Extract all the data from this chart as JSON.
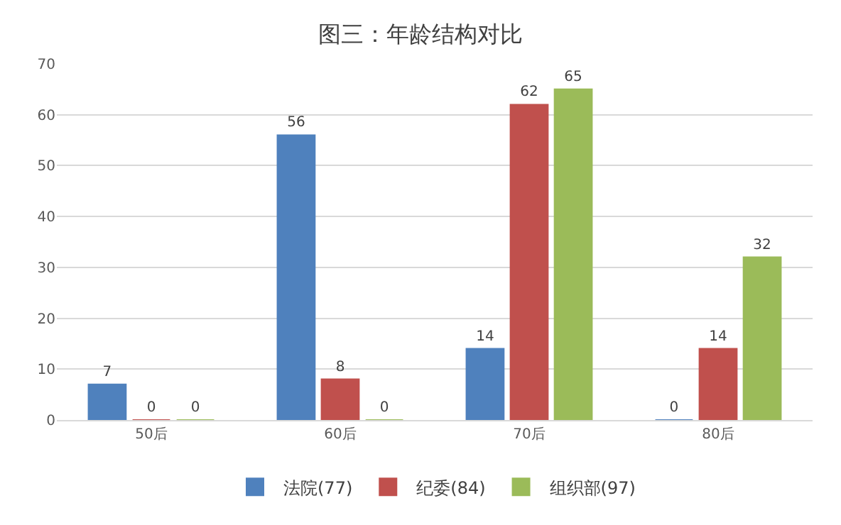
{
  "chart_data": {
    "type": "bar",
    "title": "图三：年龄结构对比",
    "categories": [
      "50后",
      "60后",
      "70后",
      "80后"
    ],
    "series": [
      {
        "name": "法院(77)",
        "color": "#4f81bd",
        "values": [
          7,
          56,
          14,
          0
        ]
      },
      {
        "name": "纪委(84)",
        "color": "#c0504d",
        "values": [
          0,
          8,
          62,
          14
        ]
      },
      {
        "name": "组织部(97)",
        "color": "#9bbb59",
        "values": [
          0,
          0,
          65,
          32
        ]
      }
    ],
    "ylim": [
      0,
      70
    ],
    "yticks": [
      0,
      10,
      20,
      30,
      40,
      50,
      60,
      70
    ],
    "grid": "y",
    "legend": "bottom",
    "data_labels": true
  }
}
